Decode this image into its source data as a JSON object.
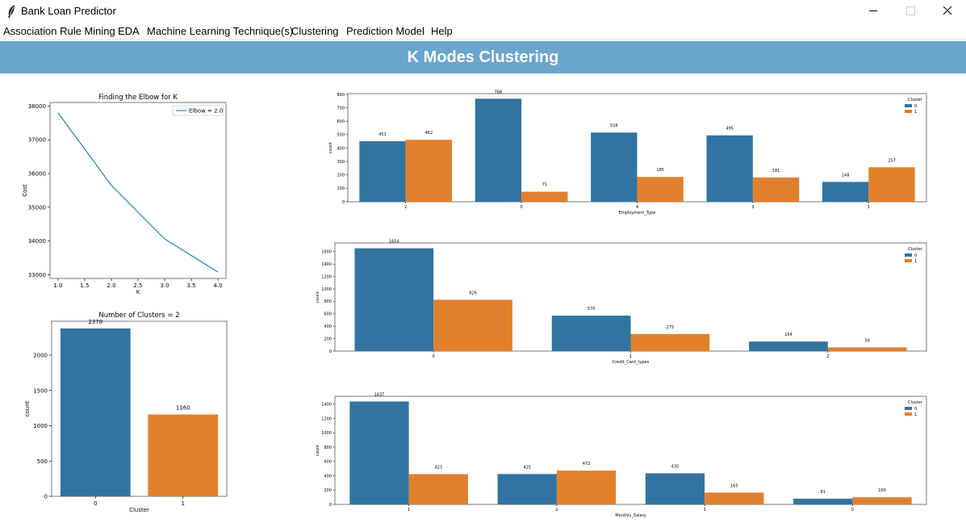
{
  "window": {
    "title": "Bank Loan Predictor"
  },
  "menu": [
    {
      "label": "Association Rule Mining"
    },
    {
      "label": "EDA"
    },
    {
      "label": "Machine Learning Technique(s)"
    },
    {
      "label": "Clustering"
    },
    {
      "label": "Prediction Model"
    },
    {
      "label": "Help"
    }
  ],
  "banner": {
    "title": "K Modes Clustering"
  },
  "colors": {
    "cluster0": "#3274a1",
    "cluster1": "#e1812c",
    "line": "#1f77b4",
    "banner": "#69a5cd"
  },
  "chart_data": [
    {
      "type": "line",
      "title": "Finding the Elbow for K",
      "xlabel": "K",
      "ylabel": "Cost",
      "x": [
        1.0,
        2.0,
        3.0,
        4.0
      ],
      "y": [
        37800,
        35650,
        34060,
        33080
      ],
      "xticks": [
        "1.0",
        "1.5",
        "2.0",
        "2.5",
        "3.0",
        "3.5",
        "4.0"
      ],
      "yticks": [
        "33000",
        "34000",
        "35000",
        "36000",
        "37000",
        "38000"
      ],
      "xlim": [
        0.85,
        4.15
      ],
      "ylim": [
        32890,
        38105
      ],
      "legend": {
        "label": "Elbow = 2.0",
        "position": "upper-right"
      }
    },
    {
      "type": "bar",
      "title": "Number of Clusters = 2",
      "xlabel": "Cluster",
      "ylabel": "count",
      "categories": [
        "0",
        "1"
      ],
      "values": [
        2378,
        1160
      ],
      "labels": [
        "2378",
        "1160"
      ],
      "yticks": [
        "0",
        "500",
        "1000",
        "1500",
        "2000"
      ],
      "ylim": [
        0,
        2480
      ]
    },
    {
      "type": "bar",
      "xlabel": "Employment_Type",
      "ylabel": "count",
      "categories": [
        "2",
        "0",
        "4",
        "3",
        "1"
      ],
      "series": [
        {
          "name": "0",
          "values": [
            451,
            768,
            516,
            495,
            148
          ],
          "labels": [
            "451",
            "768",
            "516",
            "495",
            "148"
          ]
        },
        {
          "name": "1",
          "values": [
            462,
            75,
            185,
            181,
            257
          ],
          "labels": [
            "462",
            "75",
            "185",
            "181",
            "257"
          ]
        }
      ],
      "yticks": [
        "0",
        "100",
        "200",
        "300",
        "400",
        "500",
        "600",
        "700",
        "800"
      ],
      "ylim": [
        0,
        806
      ],
      "legend": {
        "title": "Cluster",
        "position": "upper-right"
      }
    },
    {
      "type": "bar",
      "xlabel": "Credit_Card_types",
      "ylabel": "count",
      "categories": [
        "0",
        "1",
        "2"
      ],
      "series": [
        {
          "name": "0",
          "values": [
            1654,
            570,
            154
          ],
          "labels": [
            "1654",
            "570",
            "154"
          ]
        },
        {
          "name": "1",
          "values": [
            826,
            275,
            59
          ],
          "labels": [
            "826",
            "275",
            "59"
          ]
        }
      ],
      "yticks": [
        "0",
        "200",
        "400",
        "600",
        "800",
        "1000",
        "1200",
        "1400",
        "1600"
      ],
      "ylim": [
        0,
        1740
      ],
      "legend": {
        "title": "Cluster",
        "position": "upper-right"
      }
    },
    {
      "type": "bar",
      "xlabel": "Monthly_Salary",
      "ylabel": "count",
      "categories": [
        "1",
        "2",
        "3",
        "0"
      ],
      "series": [
        {
          "name": "0",
          "values": [
            1437,
            425,
            435,
            81
          ],
          "labels": [
            "1437",
            "425",
            "435",
            "81"
          ]
        },
        {
          "name": "1",
          "values": [
            423,
            472,
            165,
            100
          ],
          "labels": [
            "423",
            "472",
            "165",
            "100"
          ]
        }
      ],
      "yticks": [
        "0",
        "200",
        "400",
        "600",
        "800",
        "1000",
        "1200",
        "1400"
      ],
      "ylim": [
        0,
        1510
      ],
      "legend": {
        "title": "Cluster",
        "position": "upper-right"
      }
    }
  ]
}
